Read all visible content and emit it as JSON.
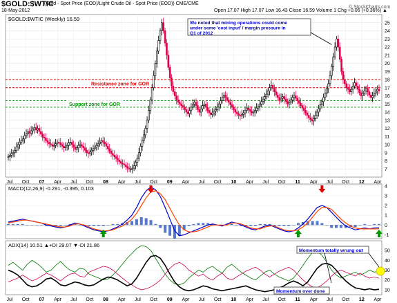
{
  "header": {
    "title": "$GOLD:$WTIC",
    "subtitle": "(Gold - Spot Price (EOD)/Light Crude Oil - Spot Price (EOD))  CME/CME",
    "watermark": "© StockCharts.com",
    "date": "18-May-2012",
    "ohlc": "Open 17.07   High 17.07   Low 16.43   Close 16.59   Volume 1   Chg +0.06 (+0.36%) ▲"
  },
  "chart_data": [
    {
      "type": "candlestick",
      "legend": "$GOLD:$WTIC (Weekly) 16.59",
      "ylim": [
        6,
        26
      ],
      "yticks": [
        7,
        8,
        9,
        10,
        11,
        12,
        13,
        14,
        15,
        16,
        17,
        18,
        19,
        20,
        21,
        22,
        23,
        24,
        25
      ],
      "x_labels": [
        "Jul",
        "Oct",
        "07",
        "Apr",
        "Jul",
        "Oct",
        "08",
        "Apr",
        "Jul",
        "Oct",
        "09",
        "Apr",
        "Jul",
        "Oct",
        "10",
        "Apr",
        "Jul",
        "Oct",
        "11",
        "Apr",
        "Jul",
        "Oct",
        "12",
        "Apr"
      ],
      "series": [
        {
          "start": "2006-06-02",
          "values": [
            8.5,
            8.7,
            8.9,
            9.0,
            9.3,
            9.7,
            10.0,
            10.3,
            10.5,
            10.7,
            11.1,
            11.3,
            11.6,
            11.4,
            11.7,
            11.9,
            12.1,
            11.8,
            12.0,
            11.6,
            11.3,
            10.9,
            10.8,
            10.5,
            10.3,
            10.1,
            10.0,
            9.8,
            9.9,
            10.1,
            10.3,
            10.2,
            10.0,
            9.8,
            9.6,
            9.7,
            9.9,
            10.2,
            10.3,
            10.0,
            9.7,
            9.4,
            9.6,
            9.9,
            10.0,
            9.8,
            9.6,
            9.3,
            9.0,
            8.9,
            9.1,
            9.3,
            9.5,
            9.7,
            9.9,
            10.1,
            10.3,
            10.5,
            10.3,
            10.1,
            9.8,
            9.5,
            9.2,
            8.9,
            8.7,
            8.5,
            8.3,
            8.1,
            7.9,
            7.7,
            7.6,
            7.5,
            7.3,
            7.1,
            7.0,
            7.0,
            7.1,
            7.4,
            7.8,
            8.3,
            9.0,
            9.8,
            10.5,
            11.2,
            12.0,
            13.0,
            14.2,
            15.5,
            17.0,
            18.5,
            20.0,
            21.5,
            22.8,
            24.0,
            25.0,
            24.0,
            22.5,
            21.0,
            19.5,
            18.2,
            17.2,
            16.5,
            16.0,
            15.5,
            15.2,
            15.0,
            14.8,
            14.6,
            14.3,
            14.0,
            13.8,
            14.2,
            14.6,
            15.0,
            15.2,
            14.8,
            14.3,
            14.0,
            14.4,
            14.8,
            15.0,
            14.6,
            14.2,
            13.9,
            13.7,
            13.9,
            14.1,
            14.3,
            14.6,
            15.0,
            15.4,
            15.8,
            16.1,
            15.8,
            15.5,
            15.2,
            14.9,
            14.6,
            14.3,
            14.0,
            13.8,
            13.6,
            13.5,
            13.7,
            13.9,
            14.2,
            14.5,
            14.3,
            14.1,
            13.9,
            14.0,
            14.2,
            14.5,
            14.7,
            15.0,
            15.3,
            15.6,
            15.9,
            16.2,
            16.6,
            17.0,
            17.3,
            16.9,
            16.5,
            16.1,
            15.8,
            15.5,
            15.7,
            15.9,
            15.6,
            15.3,
            15.0,
            15.2,
            15.5,
            15.8,
            16.0,
            15.7,
            15.4,
            15.1,
            14.8,
            14.5,
            14.2,
            13.9,
            13.6,
            13.3,
            13.1,
            12.9,
            13.2,
            13.6,
            14.0,
            14.4,
            14.9,
            15.3,
            15.8,
            16.3,
            16.9,
            17.5,
            18.5,
            19.6,
            20.8,
            22.0,
            23.0,
            22.0,
            20.5,
            19.0,
            18.0,
            17.5,
            17.0,
            16.8,
            16.5,
            16.8,
            17.2,
            17.6,
            17.2,
            16.8,
            16.4,
            16.0,
            16.3,
            16.6,
            16.9,
            16.5,
            16.1,
            15.8,
            16.0,
            16.3,
            16.6,
            16.8,
            16.59
          ]
        }
      ],
      "annotations": [
        {
          "kind": "zone",
          "label": "Resistance zone for GOR",
          "range": [
            17.0,
            18.0
          ]
        },
        {
          "kind": "zone",
          "label": "Support zone for GOR",
          "range": [
            14.6,
            15.4
          ]
        },
        {
          "kind": "callout",
          "label": "We noted that mining operations could come under some 'cost input' / margin pressure in Q1 of 2012"
        }
      ]
    },
    {
      "type": "line",
      "legend": "MACD(12,26,9) -0.291, -0.395, 0.103",
      "ylim": [
        -1.4,
        4.2
      ],
      "yticks": [
        4,
        3,
        2,
        1,
        0,
        -1
      ],
      "series": [
        {
          "name": "MACD",
          "values": [
            0.3,
            0.4,
            0.5,
            0.6,
            0.5,
            0.4,
            0.3,
            0.2,
            0.0,
            -0.1,
            -0.2,
            -0.3,
            -0.2,
            0.0,
            0.2,
            0.1,
            -0.1,
            -0.3,
            -0.5,
            -0.6,
            -0.7,
            -0.6,
            -0.4,
            -0.2,
            0.1,
            0.5,
            1.0,
            1.8,
            2.8,
            3.5,
            3.9,
            3.6,
            2.9,
            1.8,
            0.6,
            -0.6,
            -1.1,
            -1.0,
            -0.8,
            -0.6,
            -0.4,
            -0.2,
            0.0,
            0.1,
            0.0,
            -0.1,
            0.1,
            0.3,
            0.2,
            0.0,
            -0.2,
            -0.4,
            -0.5,
            -0.3,
            -0.1,
            0.0,
            -0.2,
            -0.4,
            -0.6,
            -0.7,
            -0.6,
            -0.3,
            0.1,
            0.6,
            1.2,
            1.8,
            2.0,
            1.8,
            1.3,
            0.8,
            0.3,
            -0.1,
            -0.3,
            -0.5,
            -0.4,
            -0.3,
            -0.4,
            -0.3,
            -0.291
          ]
        },
        {
          "name": "Signal",
          "values": [
            0.2,
            0.3,
            0.4,
            0.5,
            0.5,
            0.4,
            0.3,
            0.2,
            0.1,
            0.0,
            -0.1,
            -0.2,
            -0.2,
            -0.1,
            0.1,
            0.1,
            0.0,
            -0.2,
            -0.4,
            -0.5,
            -0.6,
            -0.6,
            -0.5,
            -0.3,
            -0.1,
            0.2,
            0.6,
            1.2,
            2.0,
            2.8,
            3.4,
            3.5,
            3.2,
            2.6,
            1.7,
            0.8,
            0.0,
            -0.5,
            -0.7,
            -0.7,
            -0.6,
            -0.4,
            -0.2,
            0.0,
            0.0,
            0.0,
            0.0,
            0.2,
            0.2,
            0.1,
            -0.1,
            -0.3,
            -0.4,
            -0.4,
            -0.2,
            -0.1,
            -0.1,
            -0.3,
            -0.5,
            -0.6,
            -0.6,
            -0.5,
            -0.2,
            0.2,
            0.8,
            1.4,
            1.8,
            1.8,
            1.6,
            1.1,
            0.6,
            0.2,
            -0.1,
            -0.3,
            -0.4,
            -0.4,
            -0.4,
            -0.4,
            -0.395
          ]
        },
        {
          "name": "Histogram",
          "values": [
            0.1,
            0.1,
            0.1,
            0.1,
            0.0,
            0.0,
            0.0,
            0.0,
            -0.1,
            -0.1,
            -0.1,
            -0.1,
            0.0,
            0.1,
            0.1,
            0.0,
            -0.1,
            -0.1,
            -0.1,
            -0.1,
            -0.1,
            0.0,
            0.1,
            0.1,
            0.2,
            0.3,
            0.4,
            0.6,
            0.8,
            0.7,
            0.5,
            0.1,
            -0.3,
            -0.8,
            -1.1,
            -1.4,
            -1.1,
            -0.5,
            -0.1,
            0.1,
            0.2,
            0.2,
            0.2,
            0.1,
            0.0,
            -0.1,
            0.1,
            0.1,
            0.0,
            -0.1,
            -0.1,
            -0.1,
            -0.1,
            0.1,
            0.1,
            0.1,
            -0.1,
            -0.1,
            -0.1,
            -0.1,
            0.0,
            0.2,
            0.3,
            0.4,
            0.4,
            0.4,
            0.2,
            0.0,
            -0.3,
            -0.3,
            -0.3,
            -0.3,
            -0.2,
            -0.2,
            0.0,
            0.1,
            0.0,
            0.1,
            0.103
          ]
        }
      ],
      "markers": [
        {
          "kind": "down-arrow",
          "x_index": 30
        },
        {
          "kind": "down-arrow",
          "x_index": 66
        },
        {
          "kind": "up-arrow",
          "x_index": 20
        },
        {
          "kind": "up-arrow",
          "x_index": 61
        },
        {
          "kind": "up-arrow",
          "x_index": 78
        }
      ]
    },
    {
      "type": "line",
      "legend": "ADX(14) 10.51 ▲+DI 29.07 ▼-DI 21.86",
      "ylim": [
        5,
        60
      ],
      "yticks": [
        50,
        40,
        30,
        20,
        10
      ],
      "series": [
        {
          "name": "ADX",
          "values": [
            30,
            28,
            25,
            20,
            15,
            13,
            14,
            17,
            21,
            22,
            19,
            15,
            14,
            16,
            18,
            17,
            15,
            14,
            15,
            18,
            21,
            23,
            22,
            20,
            17,
            14,
            16,
            22,
            30,
            38,
            44,
            45,
            42,
            35,
            26,
            18,
            13,
            10,
            9,
            10,
            12,
            14,
            13,
            11,
            10,
            9,
            10,
            11,
            12,
            13,
            14,
            12,
            10,
            9,
            8,
            9,
            10,
            12,
            14,
            17,
            19,
            17,
            14,
            18,
            25,
            32,
            36,
            37,
            35,
            30,
            24,
            19,
            15,
            12,
            11,
            10,
            11,
            10,
            10.51
          ]
        },
        {
          "name": "+DI",
          "values": [
            35,
            38,
            34,
            30,
            36,
            40,
            37,
            33,
            28,
            30,
            35,
            39,
            34,
            30,
            28,
            32,
            31,
            26,
            24,
            22,
            20,
            21,
            25,
            30,
            36,
            42,
            47,
            52,
            55,
            54,
            50,
            42,
            34,
            26,
            20,
            16,
            15,
            17,
            22,
            26,
            30,
            28,
            32,
            34,
            30,
            27,
            33,
            36,
            32,
            28,
            25,
            22,
            20,
            24,
            28,
            30,
            26,
            23,
            21,
            19,
            22,
            28,
            35,
            42,
            48,
            50,
            45,
            38,
            30,
            25,
            22,
            24,
            26,
            28,
            25,
            27,
            30,
            28,
            29.07
          ]
        },
        {
          "name": "-DI",
          "values": [
            18,
            20,
            22,
            25,
            22,
            19,
            21,
            24,
            27,
            25,
            22,
            19,
            23,
            26,
            27,
            24,
            23,
            28,
            30,
            32,
            34,
            33,
            30,
            26,
            22,
            18,
            15,
            12,
            10,
            11,
            13,
            16,
            20,
            26,
            32,
            36,
            38,
            35,
            30,
            27,
            24,
            26,
            22,
            20,
            24,
            27,
            22,
            20,
            23,
            26,
            29,
            31,
            33,
            30,
            26,
            23,
            26,
            29,
            31,
            33,
            30,
            25,
            20,
            16,
            13,
            12,
            15,
            19,
            24,
            28,
            30,
            28,
            26,
            24,
            27,
            24,
            22,
            23,
            21.86
          ]
        }
      ],
      "annotations": [
        {
          "kind": "callout",
          "label": "Momentum totally wrung out"
        },
        {
          "kind": "callout",
          "label": "Momentum over done"
        }
      ]
    }
  ]
}
